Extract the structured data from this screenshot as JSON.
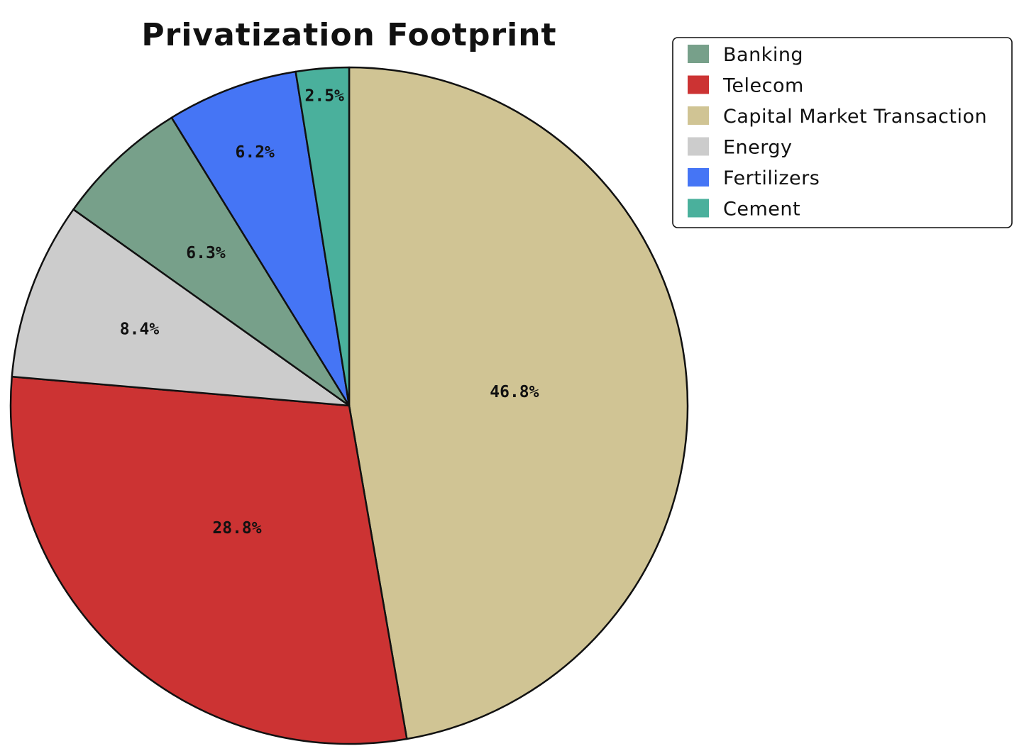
{
  "chart_data": {
    "type": "pie",
    "title": "Privatization Footprint",
    "slices": [
      {
        "label": "Capital Market Transaction",
        "value": 46.8,
        "display": "46.8%",
        "color": "#D0C494"
      },
      {
        "label": "Telecom",
        "value": 28.8,
        "display": "28.8%",
        "color": "#CC3333"
      },
      {
        "label": "Energy",
        "value": 8.4,
        "display": "8.4%",
        "color": "#CCCCCC"
      },
      {
        "label": "Banking",
        "value": 6.3,
        "display": "6.3%",
        "color": "#77A08A"
      },
      {
        "label": "Fertilizers",
        "value": 6.2,
        "display": "6.2%",
        "color": "#4575F5"
      },
      {
        "label": "Cement",
        "value": 2.5,
        "display": "2.5%",
        "color": "#4AB09C"
      }
    ],
    "direction": "clockwise",
    "start": "top",
    "legend": {
      "placement": "top-right",
      "entries": [
        {
          "label": "Banking",
          "color": "#77A08A"
        },
        {
          "label": "Telecom",
          "color": "#CC3333"
        },
        {
          "label": "Capital Market Transaction",
          "color": "#D0C494"
        },
        {
          "label": "Energy",
          "color": "#CCCCCC"
        },
        {
          "label": "Fertilizers",
          "color": "#4575F5"
        },
        {
          "label": "Cement",
          "color": "#4AB09C"
        }
      ]
    }
  }
}
